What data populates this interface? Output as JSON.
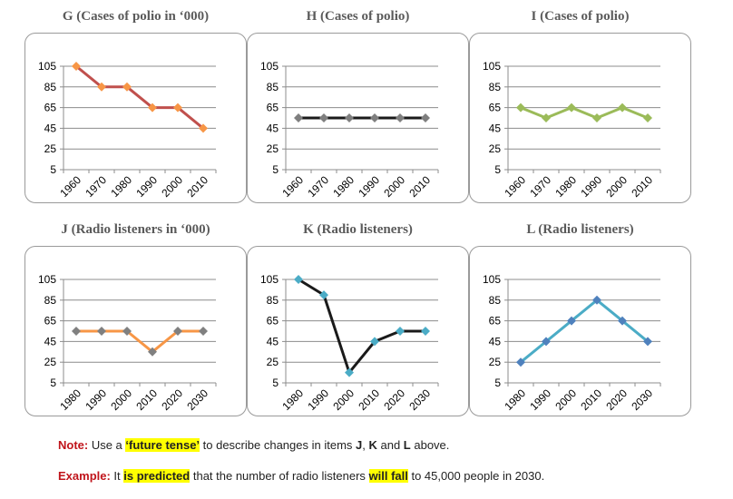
{
  "chart_data": [
    {
      "id": "G",
      "type": "line",
      "title": "G (Cases of polio in ‘000)",
      "categories": [
        "1960",
        "1970",
        "1980",
        "1990",
        "2000",
        "2010"
      ],
      "values": [
        105,
        85,
        85,
        65,
        65,
        45
      ],
      "yticks": [
        105,
        85,
        65,
        45,
        25,
        5
      ],
      "ylim": [
        5,
        105
      ],
      "line_color": "#c0504d",
      "marker_color": "#f79646"
    },
    {
      "id": "H",
      "type": "line",
      "title": "H (Cases of polio)",
      "categories": [
        "1960",
        "1970",
        "1980",
        "1990",
        "2000",
        "2010"
      ],
      "values": [
        55,
        55,
        55,
        55,
        55,
        55
      ],
      "yticks": [
        105,
        85,
        65,
        45,
        25,
        5
      ],
      "ylim": [
        5,
        105
      ],
      "line_color": "#1a1a1a",
      "marker_color": "#7f7f7f"
    },
    {
      "id": "I",
      "type": "line",
      "title": "I (Cases of polio)",
      "categories": [
        "1960",
        "1970",
        "1980",
        "1990",
        "2000",
        "2010"
      ],
      "values": [
        65,
        55,
        65,
        55,
        65,
        55
      ],
      "yticks": [
        105,
        85,
        65,
        45,
        25,
        5
      ],
      "ylim": [
        5,
        105
      ],
      "line_color": "#9bbb59",
      "marker_color": "#9bbb59"
    },
    {
      "id": "J",
      "type": "line",
      "title": "J (Radio listeners in ‘000)",
      "categories": [
        "1980",
        "1990",
        "2000",
        "2010",
        "2020",
        "2030"
      ],
      "values": [
        55,
        55,
        55,
        35,
        55,
        55
      ],
      "yticks": [
        105,
        85,
        65,
        45,
        25,
        5
      ],
      "ylim": [
        5,
        105
      ],
      "line_color": "#f79646",
      "marker_color": "#808080"
    },
    {
      "id": "K",
      "type": "line",
      "title": "K (Radio listeners)",
      "categories": [
        "1980",
        "1990",
        "2000",
        "2010",
        "2020",
        "2030"
      ],
      "values": [
        105,
        90,
        15,
        45,
        55,
        55
      ],
      "yticks": [
        105,
        85,
        65,
        45,
        25,
        5
      ],
      "ylim": [
        5,
        105
      ],
      "line_color": "#1a1a1a",
      "marker_color": "#4bacc6",
      "segment_colors": [
        "#1a1a1a",
        "#1a1a1a",
        "#1a1a1a",
        "#1a1a1a",
        "#1a1a1a"
      ]
    },
    {
      "id": "L",
      "type": "line",
      "title": "L (Radio listeners)",
      "categories": [
        "1980",
        "1990",
        "2000",
        "2010",
        "2020",
        "2030"
      ],
      "values": [
        25,
        45,
        65,
        85,
        65,
        45
      ],
      "yticks": [
        105,
        85,
        65,
        45,
        25,
        5
      ],
      "ylim": [
        5,
        105
      ],
      "line_color": "#4bacc6",
      "marker_color": "#4f81bd"
    }
  ],
  "note": {
    "label": "Note:",
    "text1": " Use a ",
    "highlight": "‘future tense’",
    "text2": " to describe changes in items ",
    "j": "J",
    "sep1": ", ",
    "k": "K",
    "sep2": " and ",
    "l": "L",
    "text3": " above."
  },
  "example": {
    "label": "Example:",
    "text1": " It ",
    "highlight1": "is predicted",
    "text2": " that the number of radio listeners ",
    "highlight2": "will fall",
    "text3": " to 45,000 people in 2030."
  }
}
